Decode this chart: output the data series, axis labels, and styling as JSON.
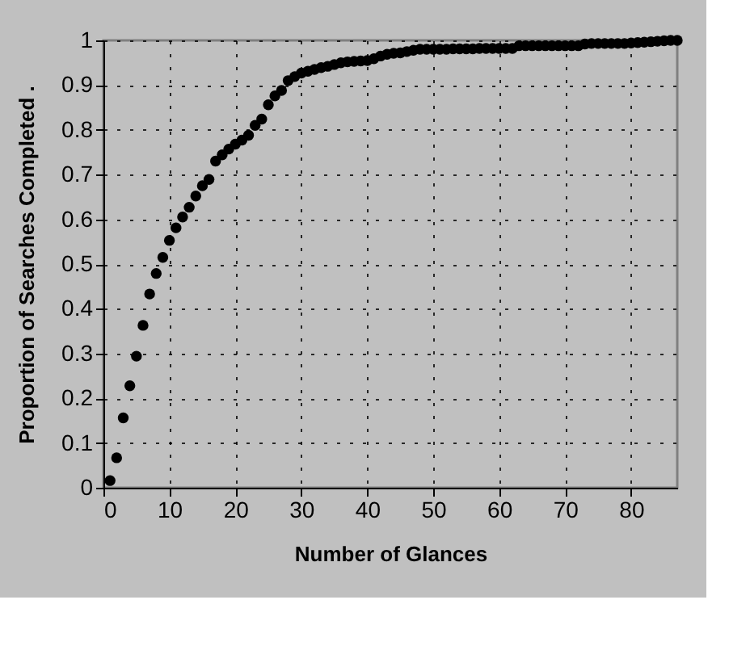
{
  "chart_data": {
    "type": "scatter",
    "xlabel": "Number of Glances",
    "ylabel": "Proportion of Searches Completed .",
    "x": [
      1,
      2,
      3,
      4,
      5,
      6,
      7,
      8,
      9,
      10,
      11,
      12,
      13,
      14,
      15,
      16,
      17,
      18,
      19,
      20,
      21,
      22,
      23,
      24,
      25,
      26,
      27,
      28,
      29,
      30,
      31,
      32,
      33,
      34,
      35,
      36,
      37,
      38,
      39,
      40,
      41,
      42,
      43,
      44,
      45,
      46,
      47,
      48,
      49,
      50,
      51,
      52,
      53,
      54,
      55,
      56,
      57,
      58,
      59,
      60,
      61,
      62,
      63,
      64,
      65,
      66,
      67,
      68,
      69,
      70,
      71,
      72,
      73,
      74,
      75,
      76,
      77,
      78,
      79,
      80,
      81,
      82,
      83,
      84,
      85,
      86,
      87
    ],
    "series": [
      {
        "color": "#000000",
        "values": [
          0.016,
          0.067,
          0.156,
          0.228,
          0.294,
          0.363,
          0.433,
          0.479,
          0.515,
          0.553,
          0.581,
          0.605,
          0.627,
          0.652,
          0.675,
          0.689,
          0.73,
          0.744,
          0.757,
          0.768,
          0.777,
          0.788,
          0.81,
          0.824,
          0.856,
          0.876,
          0.888,
          0.91,
          0.919,
          0.927,
          0.931,
          0.935,
          0.939,
          0.942,
          0.946,
          0.95,
          0.952,
          0.953,
          0.954,
          0.955,
          0.959,
          0.965,
          0.969,
          0.971,
          0.972,
          0.975,
          0.978,
          0.98,
          0.98,
          0.98,
          0.98,
          0.98,
          0.981,
          0.981,
          0.981,
          0.981,
          0.982,
          0.982,
          0.982,
          0.982,
          0.982,
          0.982,
          0.988,
          0.988,
          0.988,
          0.988,
          0.988,
          0.988,
          0.988,
          0.988,
          0.988,
          0.988,
          0.992,
          0.993,
          0.993,
          0.993,
          0.993,
          0.993,
          0.993,
          0.994,
          0.995,
          0.996,
          0.997,
          0.998,
          0.999,
          1,
          1
        ]
      }
    ],
    "xlim": [
      0,
      87
    ],
    "xticks": [
      0,
      10,
      20,
      30,
      40,
      50,
      60,
      70,
      80
    ],
    "ylim": [
      0,
      1
    ],
    "yticks": [
      0,
      0.1,
      0.2,
      0.3,
      0.4,
      0.5,
      0.6,
      0.7,
      0.8,
      0.9,
      1
    ],
    "grid": true,
    "marker": "circle"
  }
}
